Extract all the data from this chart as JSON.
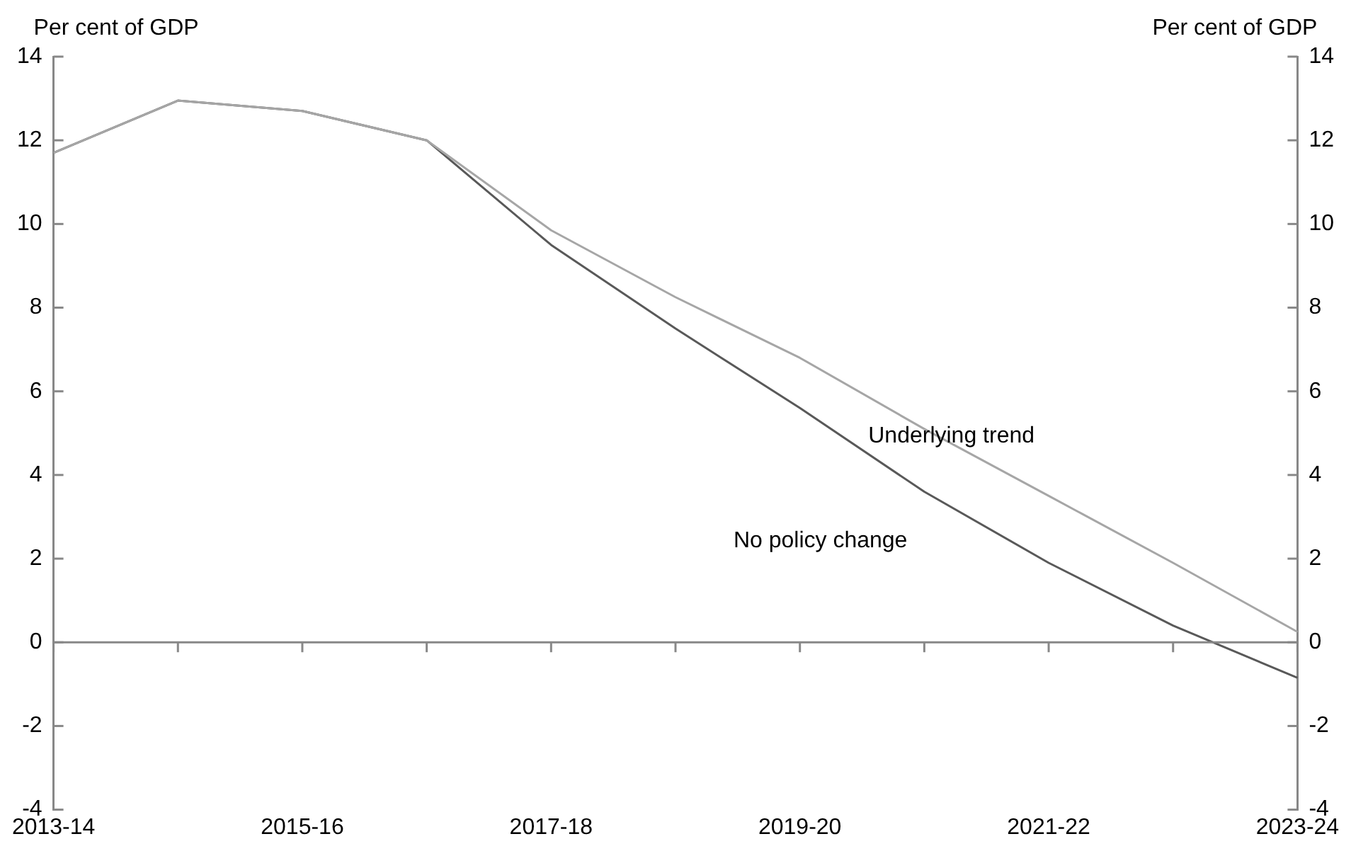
{
  "chart_data": {
    "type": "line",
    "ylabel": "Per cent of GDP",
    "y2label": "Per cent of GDP",
    "categories": [
      "2013-14",
      null,
      "2015-16",
      null,
      "2017-18",
      null,
      "2019-20",
      null,
      "2021-22",
      null,
      "2023-24"
    ],
    "series": [
      {
        "name": "Underlying trend",
        "color": "#a6a6a6",
        "values": [
          11.7,
          12.95,
          12.7,
          12.0,
          9.85,
          8.25,
          6.8,
          5.1,
          3.5,
          1.9,
          0.25
        ]
      },
      {
        "name": "No policy change",
        "color": "#595959",
        "values": [
          11.7,
          12.95,
          12.7,
          12.0,
          9.5,
          7.5,
          5.6,
          3.6,
          1.9,
          0.4,
          -0.85
        ]
      }
    ],
    "ylim": [
      -4,
      14
    ],
    "yticks": [
      -4,
      -2,
      0,
      2,
      4,
      6,
      8,
      10,
      12,
      14
    ],
    "y2lim": [
      -4,
      14
    ],
    "y2ticks": [
      -4,
      -2,
      0,
      2,
      4,
      6,
      8,
      10,
      12,
      14
    ],
    "ref_lines": [
      {
        "axis": "y",
        "value": 0,
        "color": "#888888"
      }
    ],
    "grid": false,
    "legend": false,
    "marker": "none",
    "line_style": "solid"
  }
}
